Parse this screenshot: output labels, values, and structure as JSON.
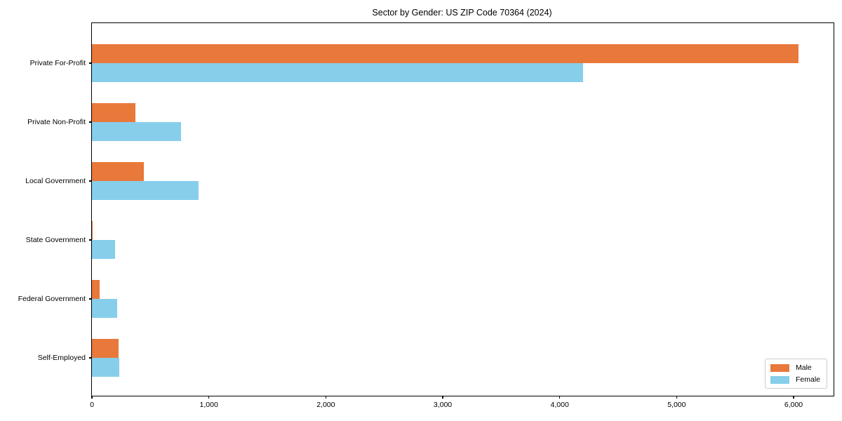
{
  "title": "Sector by Gender: US ZIP Code 70364 (2024)",
  "colors": {
    "male": "#E8793B",
    "female": "#87CEEB",
    "axis": "#000000",
    "legend_border": "#CCCCCC",
    "background": "#FFFFFF"
  },
  "chart_data": {
    "type": "bar",
    "orientation": "horizontal",
    "title": "Sector by Gender: US ZIP Code 70364 (2024)",
    "xlabel": "",
    "ylabel": "",
    "categories": [
      "Private For-Profit",
      "Private Non-Profit",
      "Local Government",
      "State Government",
      "Federal Government",
      "Self-Employed"
    ],
    "series": [
      {
        "name": "Male",
        "color": "#E8793B",
        "values": [
          6040,
          370,
          445,
          5,
          65,
          230
        ]
      },
      {
        "name": "Female",
        "color": "#87CEEB",
        "values": [
          4200,
          760,
          910,
          200,
          215,
          232
        ]
      }
    ],
    "xlim": [
      0,
      6342
    ],
    "xticks": [
      0,
      1000,
      2000,
      3000,
      4000,
      5000,
      6000
    ],
    "xtick_labels": [
      "0",
      "1,000",
      "2,000",
      "3,000",
      "4,000",
      "5,000",
      "6,000"
    ],
    "grid": false,
    "legend_position": "lower right"
  },
  "legend": {
    "entries": [
      {
        "label": "Male",
        "color": "#E8793B"
      },
      {
        "label": "Female",
        "color": "#87CEEB"
      }
    ]
  }
}
